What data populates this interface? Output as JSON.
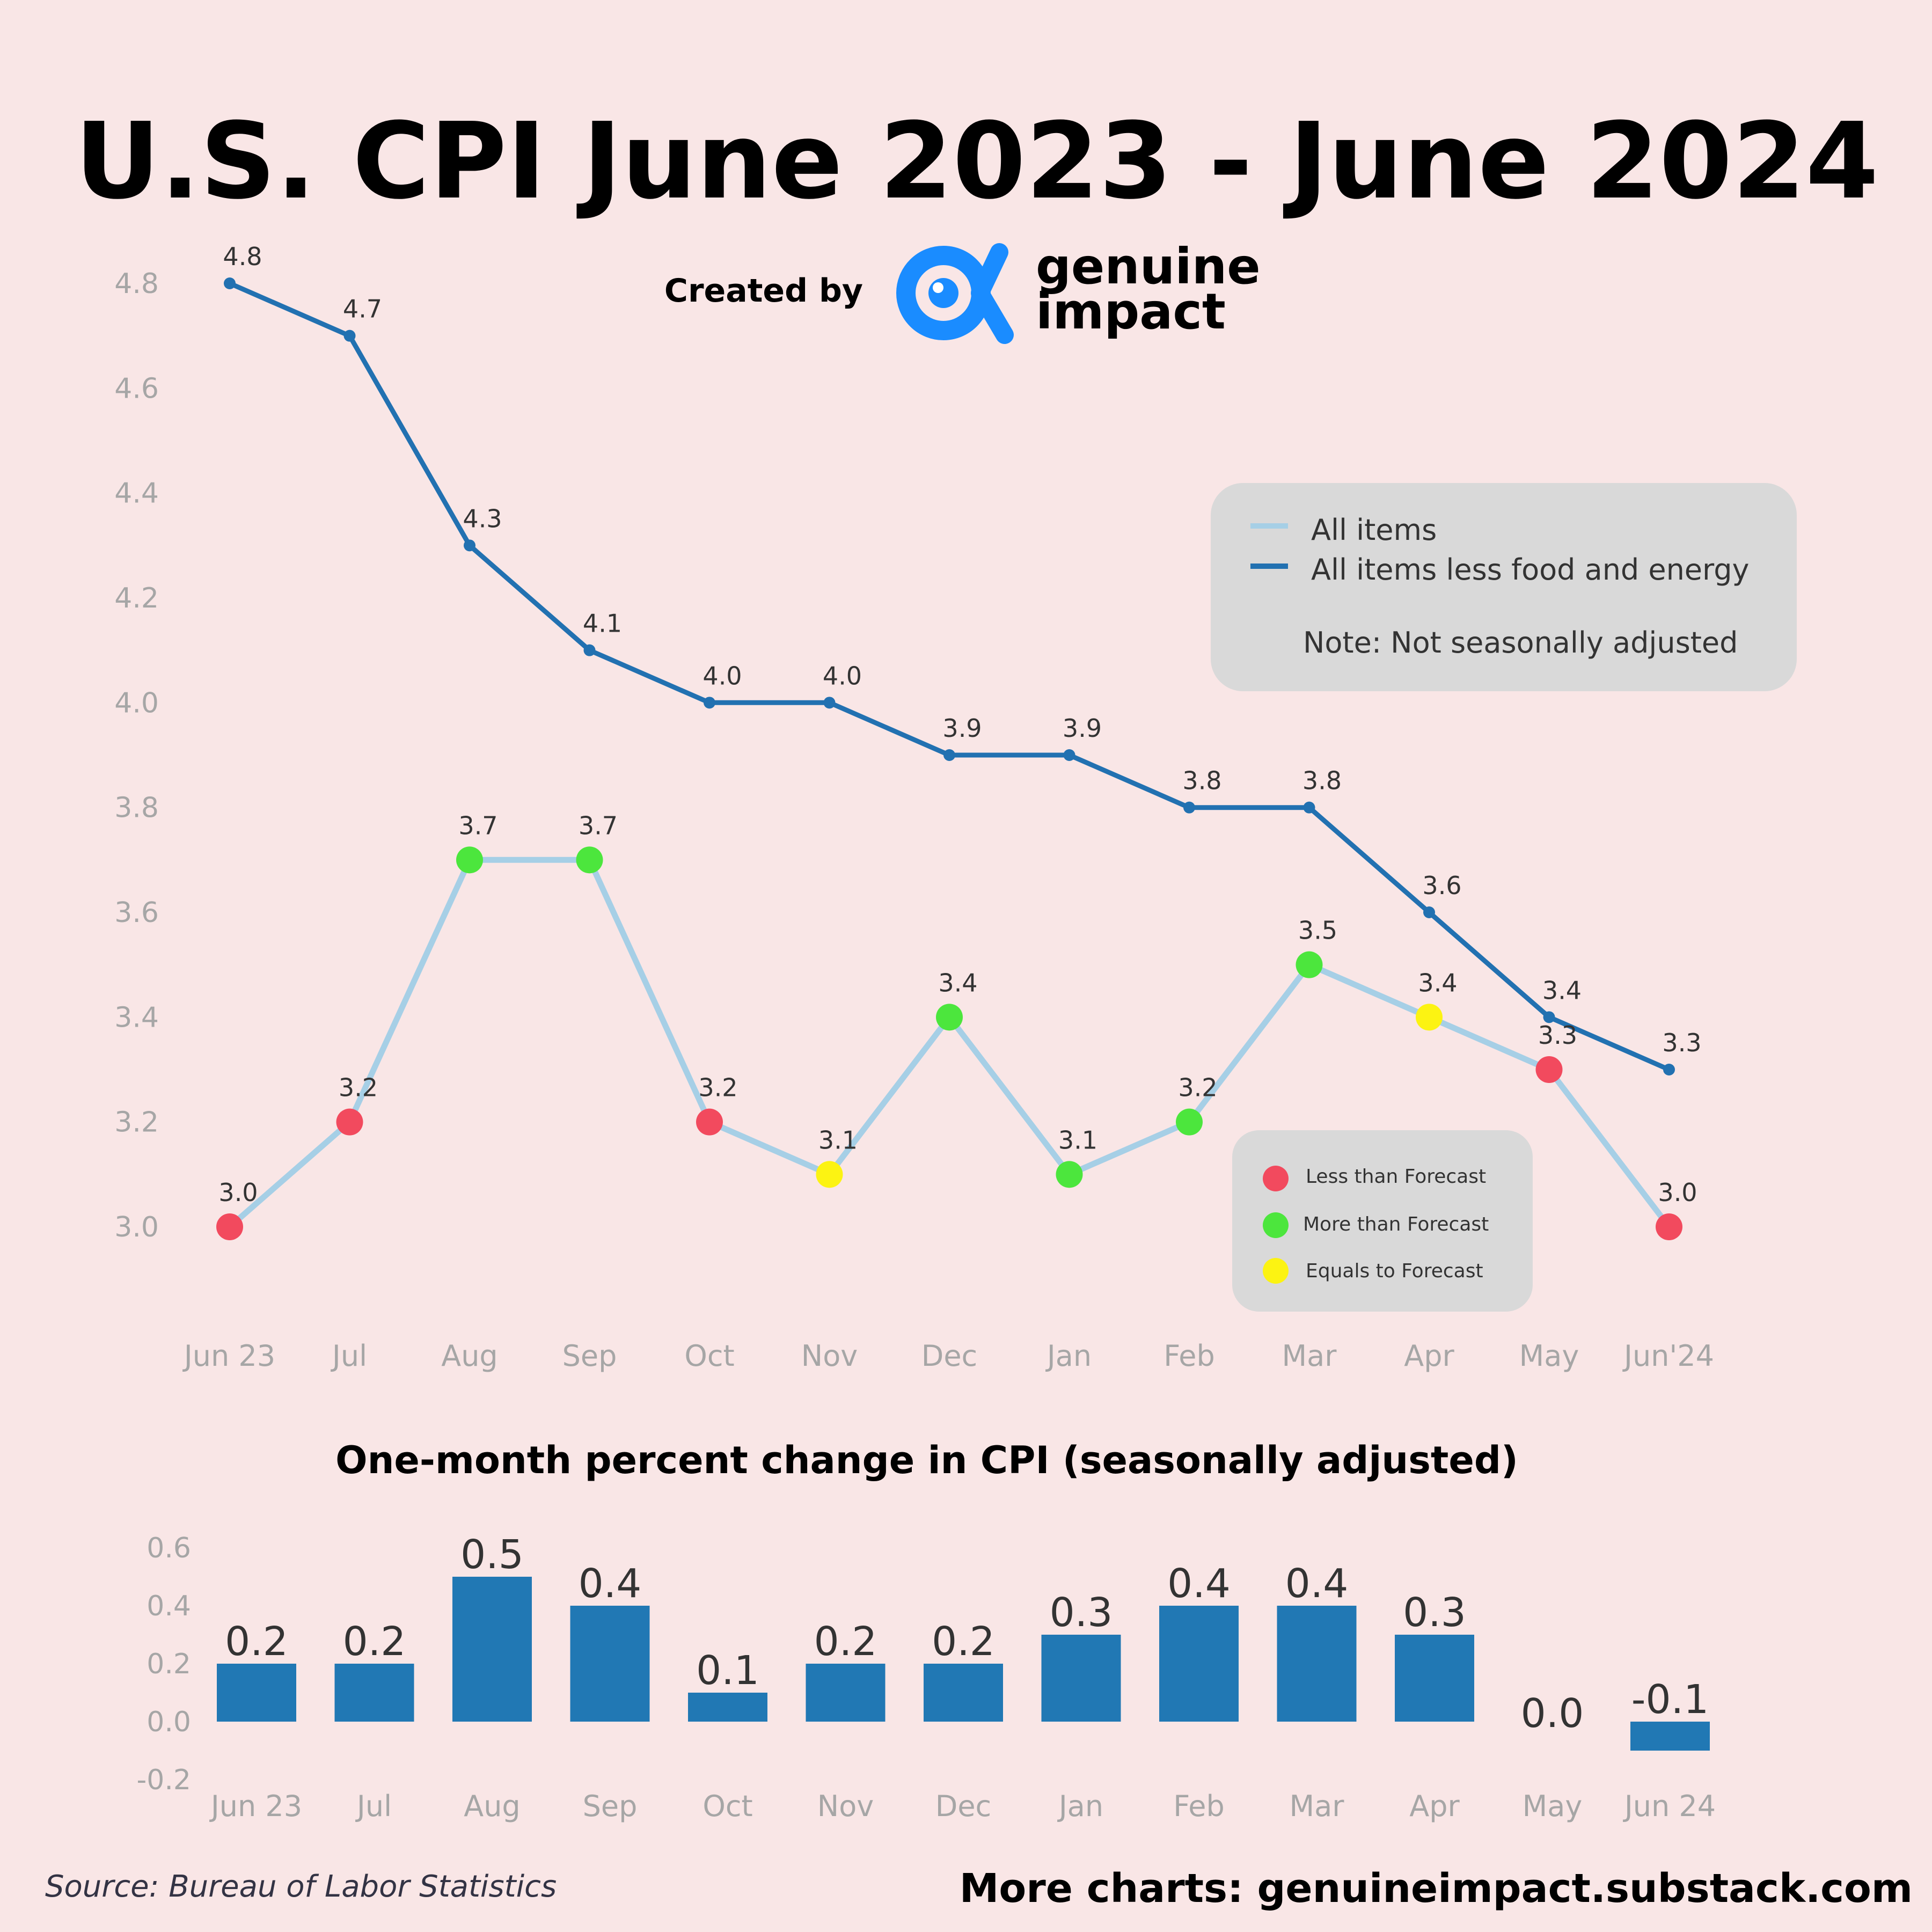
{
  "header": {
    "title": "U.S. CPI June 2023 - June 2024",
    "created_by": "Created by",
    "brand_line1": "genuine",
    "brand_line2": "impact"
  },
  "colors": {
    "background": "#f9e6e6",
    "all_items": "#a6cfe6",
    "core": "#2271b1",
    "less": "#f24a5e",
    "more": "#4ce63d",
    "equal": "#fcf312",
    "brand_blue": "#1a8cff",
    "bar": "#2178b4",
    "legend_bg": "#d9d9d9"
  },
  "legend": {
    "items": [
      "All items",
      "All items less food and energy"
    ],
    "note": "Note: Not seasonally adjusted"
  },
  "forecast_legend": {
    "less": "Less than Forecast",
    "more": "More than Forecast",
    "equal": "Equals to Forecast"
  },
  "chart_data": [
    {
      "type": "line",
      "categories": [
        "Jun 23",
        "Jul",
        "Aug",
        "Sep",
        "Oct",
        "Nov",
        "Dec",
        "Jan",
        "Feb",
        "Mar",
        "Apr",
        "May",
        "Jun'24"
      ],
      "yticks": [
        "3.0",
        "3.2",
        "3.4",
        "3.6",
        "3.8",
        "4.0",
        "4.2",
        "4.4",
        "4.6",
        "4.8"
      ],
      "ylim": [
        3.0,
        4.8
      ],
      "series": [
        {
          "name": "All items",
          "values": [
            3.0,
            3.2,
            3.7,
            3.7,
            3.2,
            3.1,
            3.4,
            3.1,
            3.2,
            3.5,
            3.4,
            3.3,
            3.0
          ],
          "labels": [
            "3.0",
            "3.2",
            "3.7",
            "3.7",
            "3.2",
            "3.1",
            "3.4",
            "3.1",
            "3.2",
            "3.5",
            "3.4",
            "3.3",
            "3.0"
          ],
          "forecast": [
            "less",
            "less",
            "more",
            "more",
            "less",
            "equal",
            "more",
            "more",
            "more",
            "more",
            "equal",
            "less",
            "less"
          ]
        },
        {
          "name": "All items less food and energy",
          "values": [
            4.8,
            4.7,
            4.3,
            4.1,
            4.0,
            4.0,
            3.9,
            3.9,
            3.8,
            3.8,
            3.6,
            3.4,
            3.3
          ],
          "labels": [
            "4.8",
            "4.7",
            "4.3",
            "4.1",
            "4.0",
            "4.0",
            "3.9",
            "3.9",
            "3.8",
            "3.8",
            "3.6",
            "3.4",
            "3.3"
          ]
        }
      ]
    },
    {
      "type": "bar",
      "title": "One-month percent change in CPI (seasonally adjusted)",
      "categories": [
        "Jun 23",
        "Jul",
        "Aug",
        "Sep",
        "Oct",
        "Nov",
        "Dec",
        "Jan",
        "Feb",
        "Mar",
        "Apr",
        "May",
        "Jun 24"
      ],
      "values": [
        0.2,
        0.2,
        0.5,
        0.4,
        0.1,
        0.2,
        0.2,
        0.3,
        0.4,
        0.4,
        0.3,
        0.0,
        -0.1
      ],
      "labels": [
        "0.2",
        "0.2",
        "0.5",
        "0.4",
        "0.1",
        "0.2",
        "0.2",
        "0.3",
        "0.4",
        "0.4",
        "0.3",
        "0.0",
        "-0.1"
      ],
      "yticks": [
        "-0.2",
        "0.0",
        "0.2",
        "0.4",
        "0.6"
      ],
      "ylim": [
        -0.2,
        0.6
      ]
    }
  ],
  "footer": {
    "source": "Source: Bureau of Labor Statistics",
    "more": "More charts: genuineimpact.substack.com"
  }
}
